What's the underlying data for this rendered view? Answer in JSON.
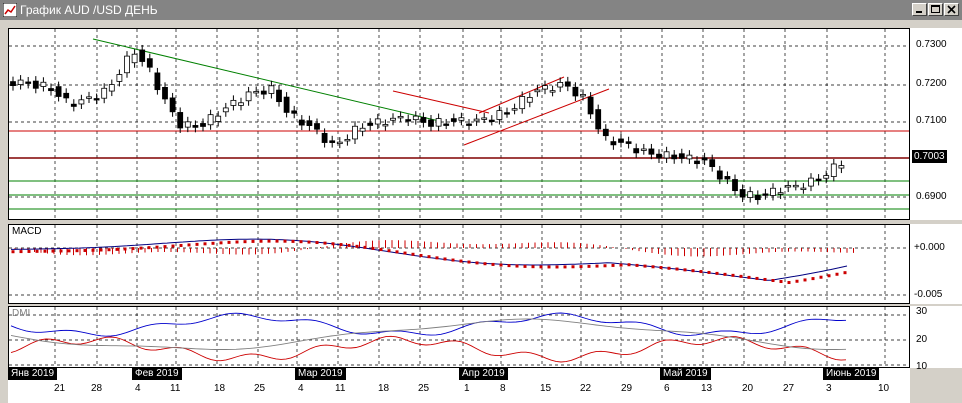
{
  "window": {
    "title": "График AUD /USD  ДЕНЬ",
    "buttons": [
      "minimize",
      "maximize",
      "close"
    ]
  },
  "colors": {
    "up_candle": "#ffffff",
    "down_candle": "#000000",
    "trend_green": "#008000",
    "trend_red": "#cc0000",
    "macd_line": "#000080",
    "macd_signal": "#cc0000",
    "dmi_plus": "#0000cc",
    "dmi_minus": "#cc0000",
    "adx": "#808080"
  },
  "price_axis": {
    "labels": [
      "0.7300",
      "0.7200",
      "0.7100",
      "0.7003",
      "0.6900"
    ],
    "current": "0.7003"
  },
  "macd": {
    "name": "MACD",
    "labels": [
      "+0.000",
      "-0.005"
    ]
  },
  "dmi": {
    "name": "DMI",
    "labels": [
      "30",
      "20",
      "10"
    ]
  },
  "months": [
    "Янв 2019",
    "Фев 2019",
    "Мар 2019",
    "Апр 2019",
    "Май 2019",
    "Июнь 2019"
  ],
  "days": [
    "21",
    "28",
    "4",
    "11",
    "18",
    "25",
    "4",
    "11",
    "18",
    "25",
    "1",
    "8",
    "15",
    "22",
    "29",
    "6",
    "13",
    "20",
    "27",
    "3",
    "10"
  ]
}
